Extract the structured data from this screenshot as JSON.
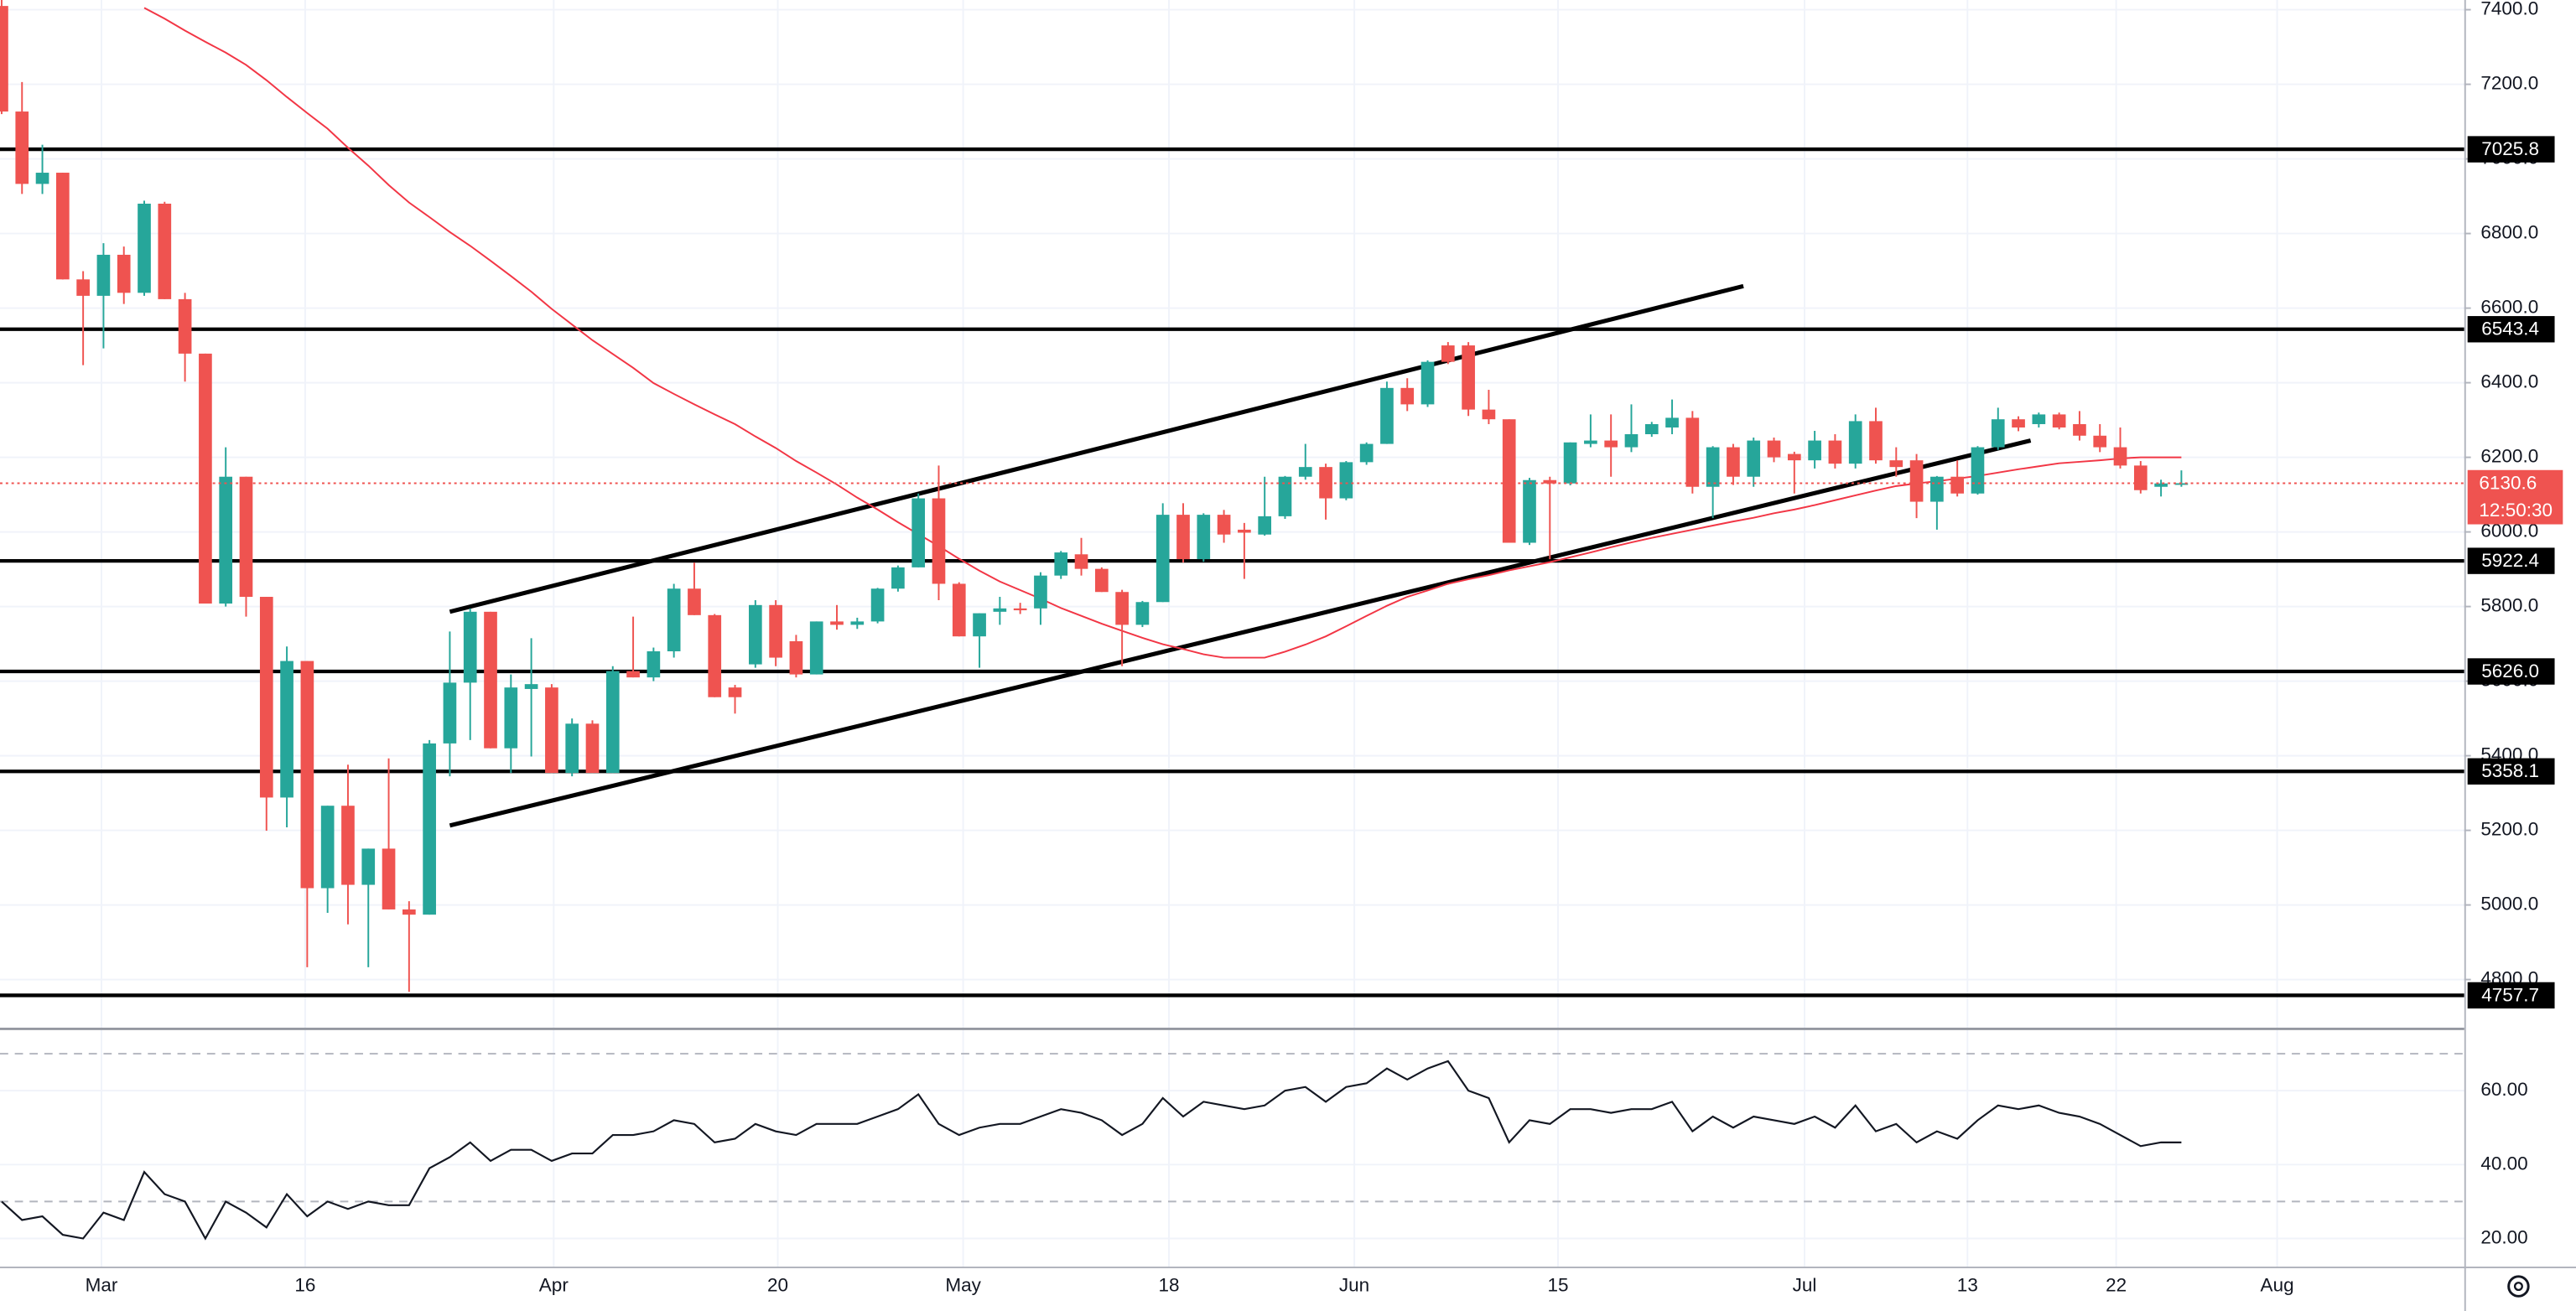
{
  "chart_data": [
    {
      "type": "candlestick",
      "up_color": "#26a69a",
      "down_color": "#ef5350",
      "ylim": [
        4692,
        7426
      ],
      "yticks": [
        {
          "value": 7400,
          "label": "7400.0"
        },
        {
          "value": 7200,
          "label": "7200.0"
        },
        {
          "value": 7000,
          "label": "7000.0"
        },
        {
          "value": 6800,
          "label": "6800.0"
        },
        {
          "value": 6600,
          "label": "6600.0"
        },
        {
          "value": 6400,
          "label": "6400.0"
        },
        {
          "value": 6200,
          "label": "6200.0"
        },
        {
          "value": 6000,
          "label": "6000.0"
        },
        {
          "value": 5800,
          "label": "5800.0"
        },
        {
          "value": 5600,
          "label": "5600.0"
        },
        {
          "value": 5400,
          "label": "5400.0"
        },
        {
          "value": 5200,
          "label": "5200.0"
        },
        {
          "value": 5000,
          "label": "5000.0"
        },
        {
          "value": 4800,
          "label": "4800.0"
        }
      ],
      "xticks": [
        {
          "value": 4.9,
          "label": "Mar"
        },
        {
          "value": 14.9,
          "label": "16"
        },
        {
          "value": 27.1,
          "label": "Apr"
        },
        {
          "value": 38.1,
          "label": "20"
        },
        {
          "value": 47.2,
          "label": "May"
        },
        {
          "value": 57.3,
          "label": "18"
        },
        {
          "value": 66.4,
          "label": "Jun"
        },
        {
          "value": 76.4,
          "label": "15"
        },
        {
          "value": 88.5,
          "label": "Jul"
        },
        {
          "value": 96.5,
          "label": "13"
        },
        {
          "value": 103.8,
          "label": "22"
        },
        {
          "value": 111.7,
          "label": "Aug"
        }
      ],
      "grid": true,
      "ohlc": [
        [
          7410,
          7430,
          7120,
          7127
        ],
        [
          7127,
          7206,
          6906,
          6933
        ],
        [
          6933,
          7038,
          6906,
          6963
        ],
        [
          6963,
          6963,
          6677,
          6677
        ],
        [
          6677,
          6699,
          6447,
          6633
        ],
        [
          6633,
          6774,
          6492,
          6743
        ],
        [
          6743,
          6765,
          6611,
          6641
        ],
        [
          6641,
          6888,
          6633,
          6880
        ],
        [
          6880,
          6885,
          6624,
          6624
        ],
        [
          6624,
          6641,
          6403,
          6478
        ],
        [
          6478,
          6478,
          5808,
          5808
        ],
        [
          5808,
          6227,
          5800,
          6148
        ],
        [
          6148,
          6148,
          5773,
          5826
        ],
        [
          5826,
          5826,
          5199,
          5288
        ],
        [
          5288,
          5693,
          5208,
          5654
        ],
        [
          5654,
          5654,
          4833,
          5045
        ],
        [
          5045,
          5266,
          4979,
          5266
        ],
        [
          5266,
          5376,
          4948,
          5054
        ],
        [
          5054,
          5151,
          4833,
          5151
        ],
        [
          5151,
          5393,
          4988,
          4988
        ],
        [
          4988,
          5010,
          4767,
          4974
        ],
        [
          4974,
          5442,
          4974,
          5433
        ],
        [
          5433,
          5733,
          5345,
          5596
        ],
        [
          5596,
          5795,
          5442,
          5786
        ],
        [
          5786,
          5786,
          5420,
          5420
        ],
        [
          5420,
          5618,
          5354,
          5583
        ],
        [
          5579,
          5715,
          5398,
          5592
        ],
        [
          5583,
          5592,
          5354,
          5354
        ],
        [
          5354,
          5500,
          5345,
          5486
        ],
        [
          5486,
          5495,
          5354,
          5354
        ],
        [
          5354,
          5640,
          5354,
          5627
        ],
        [
          5627,
          5773,
          5610,
          5610
        ],
        [
          5610,
          5690,
          5600,
          5680
        ],
        [
          5680,
          5861,
          5663,
          5848
        ],
        [
          5848,
          5918,
          5777,
          5777
        ],
        [
          5777,
          5780,
          5557,
          5557
        ],
        [
          5583,
          5590,
          5513,
          5557
        ],
        [
          5645,
          5817,
          5636,
          5804
        ],
        [
          5804,
          5817,
          5640,
          5663
        ],
        [
          5707,
          5724,
          5610,
          5618
        ],
        [
          5618,
          5760,
          5618,
          5760
        ],
        [
          5760,
          5804,
          5738,
          5751
        ],
        [
          5751,
          5770,
          5740,
          5760
        ],
        [
          5760,
          5850,
          5755,
          5848
        ],
        [
          5848,
          5910,
          5840,
          5905
        ],
        [
          5905,
          6103,
          5905,
          6090
        ],
        [
          6090,
          6178,
          5817,
          5861
        ],
        [
          5861,
          5865,
          5720,
          5720
        ],
        [
          5720,
          5782,
          5636,
          5782
        ],
        [
          5786,
          5826,
          5751,
          5795
        ],
        [
          5795,
          5810,
          5780,
          5790
        ],
        [
          5795,
          5892,
          5751,
          5883
        ],
        [
          5883,
          5949,
          5874,
          5945
        ],
        [
          5940,
          5984,
          5883,
          5901
        ],
        [
          5901,
          5905,
          5839,
          5839
        ],
        [
          5839,
          5845,
          5640,
          5751
        ],
        [
          5751,
          5815,
          5745,
          5812
        ],
        [
          5812,
          6077,
          5812,
          6046
        ],
        [
          6046,
          6077,
          5918,
          5927
        ],
        [
          5927,
          6050,
          5920,
          6046
        ],
        [
          6046,
          6059,
          5971,
          5993
        ],
        [
          6006,
          6024,
          5874,
          5998
        ],
        [
          5993,
          6148,
          5990,
          6042
        ],
        [
          6042,
          6150,
          6035,
          6148
        ],
        [
          6148,
          6236,
          6140,
          6174
        ],
        [
          6174,
          6183,
          6033,
          6090
        ],
        [
          6090,
          6190,
          6085,
          6187
        ],
        [
          6187,
          6240,
          6180,
          6236
        ],
        [
          6236,
          6403,
          6236,
          6386
        ],
        [
          6386,
          6412,
          6324,
          6342
        ],
        [
          6342,
          6460,
          6335,
          6456
        ],
        [
          6500,
          6509,
          6450,
          6456
        ],
        [
          6500,
          6509,
          6311,
          6328
        ],
        [
          6328,
          6381,
          6289,
          6302
        ],
        [
          6302,
          6302,
          5971,
          5971
        ],
        [
          5971,
          6145,
          5965,
          6139
        ],
        [
          6139,
          6148,
          5927,
          6130
        ],
        [
          6130,
          6240,
          6125,
          6240
        ],
        [
          6236,
          6315,
          6227,
          6245
        ],
        [
          6245,
          6315,
          6148,
          6227
        ],
        [
          6227,
          6342,
          6214,
          6262
        ],
        [
          6262,
          6295,
          6255,
          6289
        ],
        [
          6280,
          6355,
          6262,
          6306
        ],
        [
          6306,
          6324,
          6103,
          6121
        ],
        [
          6121,
          6230,
          6037,
          6227
        ],
        [
          6227,
          6236,
          6126,
          6148
        ],
        [
          6148,
          6253,
          6121,
          6245
        ],
        [
          6245,
          6253,
          6187,
          6200
        ],
        [
          6209,
          6215,
          6103,
          6192
        ],
        [
          6192,
          6271,
          6170,
          6245
        ],
        [
          6245,
          6262,
          6170,
          6183
        ],
        [
          6183,
          6315,
          6170,
          6297
        ],
        [
          6297,
          6333,
          6183,
          6192
        ],
        [
          6192,
          6227,
          6148,
          6174
        ],
        [
          6192,
          6209,
          6037,
          6081
        ],
        [
          6081,
          6150,
          6006,
          6148
        ],
        [
          6148,
          6192,
          6095,
          6103
        ],
        [
          6103,
          6230,
          6100,
          6227
        ],
        [
          6227,
          6333,
          6220,
          6302
        ],
        [
          6302,
          6310,
          6270,
          6280
        ],
        [
          6289,
          6320,
          6280,
          6315
        ],
        [
          6315,
          6320,
          6275,
          6280
        ],
        [
          6289,
          6324,
          6245,
          6258
        ],
        [
          6258,
          6289,
          6214,
          6227
        ],
        [
          6227,
          6280,
          6170,
          6178
        ],
        [
          6178,
          6190,
          6103,
          6112
        ],
        [
          6121,
          6140,
          6095,
          6130
        ],
        [
          6130,
          6165,
          6121,
          6130.6
        ]
      ],
      "series": [
        {
          "color": "#f23645",
          "values": [
            null,
            null,
            null,
            null,
            null,
            null,
            null,
            7405,
            7376,
            7344,
            7314,
            7285,
            7252,
            7211,
            7166,
            7123,
            7081,
            7030,
            6982,
            6930,
            6883,
            6844,
            6804,
            6767,
            6727,
            6686,
            6644,
            6598,
            6556,
            6514,
            6477,
            6440,
            6399,
            6370,
            6342,
            6315,
            6289,
            6256,
            6225,
            6190,
            6159,
            6127,
            6092,
            6060,
            6026,
            5994,
            5962,
            5928,
            5896,
            5867,
            5844,
            5821,
            5796,
            5775,
            5754,
            5735,
            5716,
            5699,
            5686,
            5672,
            5663,
            5663,
            5663,
            5679,
            5698,
            5720,
            5747,
            5775,
            5802,
            5826,
            5843,
            5861,
            5873,
            5884,
            5897,
            5908,
            5919,
            5932,
            5945,
            5959,
            5972,
            5984,
            5995,
            6006,
            6017,
            6028,
            6038,
            6050,
            6060,
            6072,
            6085,
            6098,
            6111,
            6123,
            6130,
            6136,
            6143,
            6150,
            6159,
            6168,
            6176,
            6184,
            6188,
            6192,
            6197,
            6200,
            6200,
            6200
          ]
        }
      ],
      "hlines": [
        {
          "value": 7025.8,
          "label": "7025.8"
        },
        {
          "value": 6543.4,
          "label": "6543.4"
        },
        {
          "value": 5922.4,
          "label": "5922.4"
        },
        {
          "value": 5626.0,
          "label": "5626.0"
        },
        {
          "value": 5358.1,
          "label": "5358.1"
        },
        {
          "value": 4757.7,
          "label": "4757.7"
        }
      ],
      "trendlines": [
        {
          "x": [
            22,
            85.5
          ],
          "y": [
            5786,
            6659
          ]
        },
        {
          "x": [
            22,
            99.6
          ],
          "y": [
            5213,
            6245
          ]
        }
      ],
      "last_price": {
        "value": 6130.6,
        "countdown": "12:50:30",
        "color": "#ef5350"
      }
    },
    {
      "type": "line",
      "color": "#131722",
      "ylim": [
        12.4,
        75.6
      ],
      "yticks": [
        {
          "value": 60,
          "label": "60.00"
        },
        {
          "value": 40,
          "label": "40.00"
        },
        {
          "value": 20,
          "label": "20.00"
        }
      ],
      "levels": [
        70,
        30
      ],
      "values": [
        30,
        25,
        26,
        21,
        20,
        27,
        25,
        38,
        32,
        30,
        20,
        30,
        27,
        23,
        32,
        26,
        30,
        28,
        30,
        29,
        29,
        39,
        42,
        46,
        41,
        44,
        44,
        41,
        43,
        43,
        48,
        48,
        49,
        52,
        51,
        46,
        47,
        51,
        49,
        48,
        51,
        51,
        51,
        53,
        55,
        59,
        51,
        48,
        50,
        51,
        51,
        53,
        55,
        54,
        52,
        48,
        51,
        58,
        53,
        57,
        56,
        55,
        56,
        60,
        61,
        57,
        61,
        62,
        66,
        63,
        66,
        68,
        60,
        58,
        46,
        52,
        51,
        55,
        55,
        54,
        55,
        55,
        57,
        49,
        53,
        50,
        53,
        52,
        51,
        53,
        50,
        56,
        49,
        51,
        46,
        49,
        47,
        52,
        56,
        55,
        56,
        54,
        53,
        51,
        48,
        45,
        46,
        46
      ]
    }
  ]
}
